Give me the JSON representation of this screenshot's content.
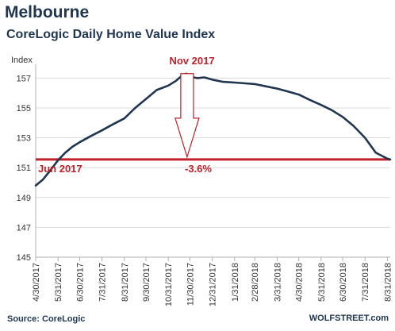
{
  "header": {
    "title": "Melbourne",
    "subtitle": "CoreLogic Daily Home Value Index"
  },
  "footer": {
    "source": "Source: CoreLogic",
    "brand": "WOLFSTREET.com"
  },
  "colors": {
    "series": "#1f3550",
    "annotation": "#c0202a",
    "grid": "#d9d9d9",
    "axis": "#b0b0b0"
  },
  "chart_data": {
    "type": "line",
    "ylabel": "Index",
    "xlabel": "",
    "ylim": [
      145,
      157.5
    ],
    "grid": "horizontal",
    "x_start": "2017-04-30",
    "x_end": "2018-09-04",
    "yticks": [
      "145",
      "147",
      "149",
      "151",
      "153",
      "155",
      "157"
    ],
    "xticks": [
      "4/30/2017",
      "5/31/2017",
      "6/30/2017",
      "7/31/2017",
      "8/31/2017",
      "9/30/2017",
      "10/31/2017",
      "11/30/2017",
      "12/31/2017",
      "1/31/2018",
      "2/28/2018",
      "3/31/2018",
      "4/30/2018",
      "5/31/2018",
      "6/30/2018",
      "7/31/2018",
      "8/31/2018"
    ],
    "series": [
      {
        "x": [
          "2017-04-30",
          "2017-05-10",
          "2017-05-20",
          "2017-05-31",
          "2017-06-10",
          "2017-06-20",
          "2017-06-30",
          "2017-07-15",
          "2017-07-31",
          "2017-08-15",
          "2017-08-31",
          "2017-09-15",
          "2017-09-30",
          "2017-10-15",
          "2017-10-31",
          "2017-11-10",
          "2017-11-15",
          "2017-11-20",
          "2017-11-25",
          "2017-11-30",
          "2017-12-10",
          "2017-12-20",
          "2017-12-31",
          "2018-01-15",
          "2018-01-31",
          "2018-02-15",
          "2018-02-28",
          "2018-03-15",
          "2018-03-31",
          "2018-04-15",
          "2018-04-30",
          "2018-05-15",
          "2018-05-31",
          "2018-06-15",
          "2018-06-30",
          "2018-07-15",
          "2018-07-31",
          "2018-08-15",
          "2018-08-31",
          "2018-09-04"
        ],
        "values": [
          149.8,
          150.2,
          150.8,
          151.5,
          152.0,
          152.4,
          152.7,
          153.1,
          153.5,
          153.9,
          154.3,
          155.0,
          155.6,
          156.2,
          156.5,
          156.8,
          157.0,
          157.2,
          157.3,
          157.1,
          157.0,
          157.05,
          156.9,
          156.75,
          156.7,
          156.65,
          156.6,
          156.45,
          156.3,
          156.1,
          155.9,
          155.55,
          155.2,
          154.85,
          154.4,
          153.8,
          153.0,
          152.0,
          151.6,
          151.55
        ]
      }
    ],
    "reference_line": {
      "value": 151.55
    },
    "annotations": {
      "peak": "Nov 2017",
      "start": "Jun 2017",
      "change": "-3.6%"
    }
  }
}
